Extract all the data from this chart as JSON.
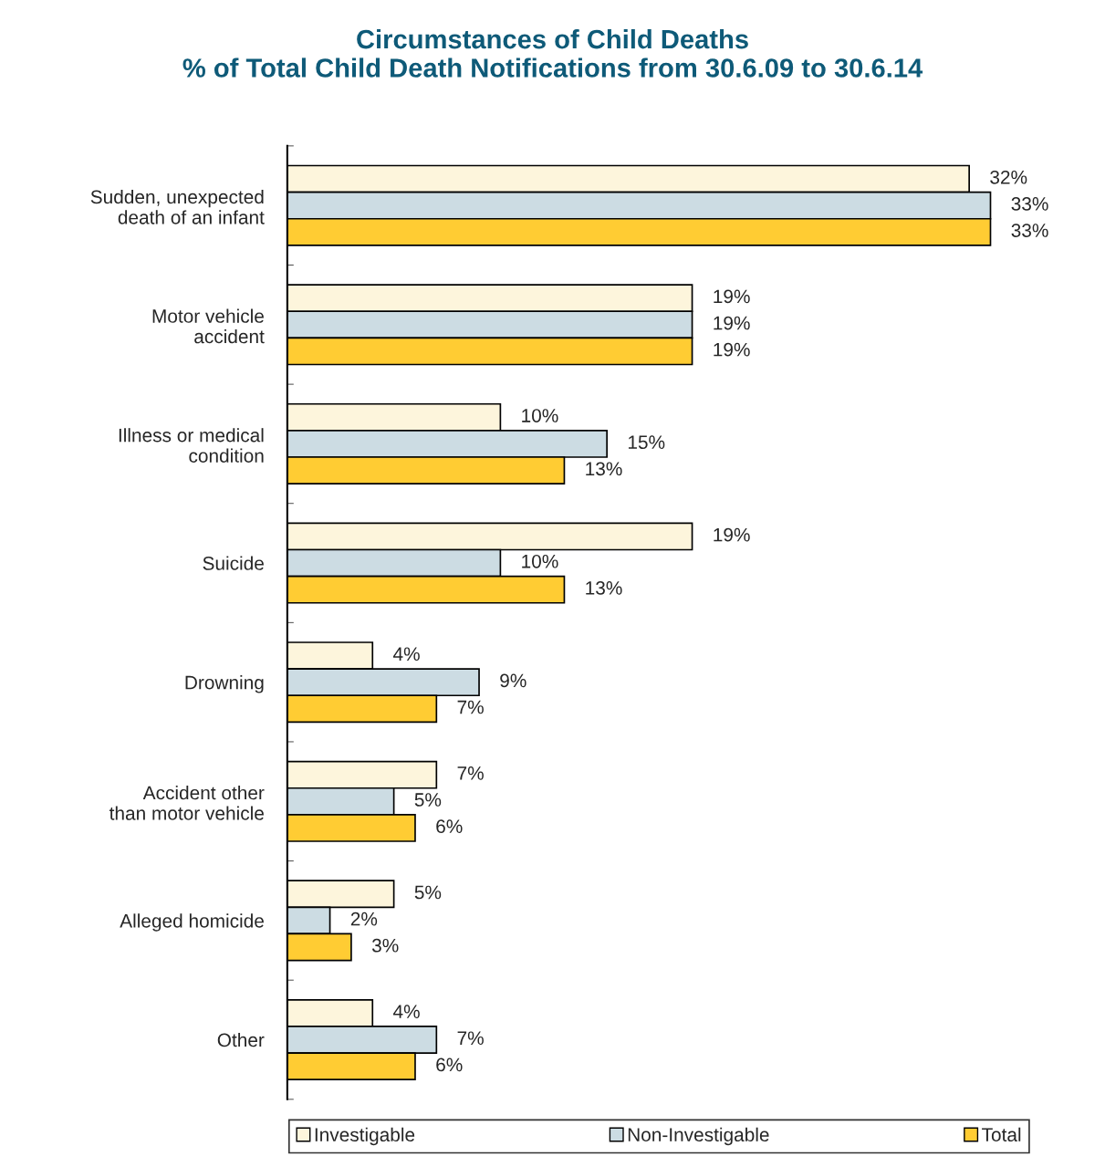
{
  "chart_data": {
    "type": "bar",
    "orientation": "horizontal",
    "title": "Circumstances of Child Deaths\n% of Total Child Death Notifications from 30.6.09 to 30.6.14",
    "categories": [
      "Sudden, unexpected\ndeath of an infant",
      "Motor vehicle\naccident",
      "Illness or medical\ncondition",
      "Suicide",
      "Drowning",
      "Accident other\nthan motor vehicle",
      "Alleged homicide",
      "Other"
    ],
    "series": [
      {
        "name": "Investigable",
        "color": "#fdf5dc",
        "values": [
          32,
          19,
          10,
          19,
          4,
          7,
          5,
          4
        ],
        "value_labels": [
          "32%",
          "19%",
          "10%",
          "19%",
          "4%",
          "7%",
          "5%",
          "4%"
        ]
      },
      {
        "name": "Non-Investigable",
        "color": "#ccdce3",
        "values": [
          33,
          19,
          15,
          10,
          9,
          5,
          2,
          7
        ],
        "value_labels": [
          "33%",
          "19%",
          "15%",
          "10%",
          "9%",
          "5%",
          "2%",
          "7%"
        ]
      },
      {
        "name": "Total",
        "color": "#ffcc33",
        "values": [
          33,
          19,
          13,
          13,
          7,
          6,
          3,
          6
        ],
        "value_labels": [
          "33%",
          "19%",
          "13%",
          "13%",
          "7%",
          "6%",
          "3%",
          "6%"
        ]
      }
    ],
    "legend": "bottom",
    "tick_labels": "y"
  }
}
